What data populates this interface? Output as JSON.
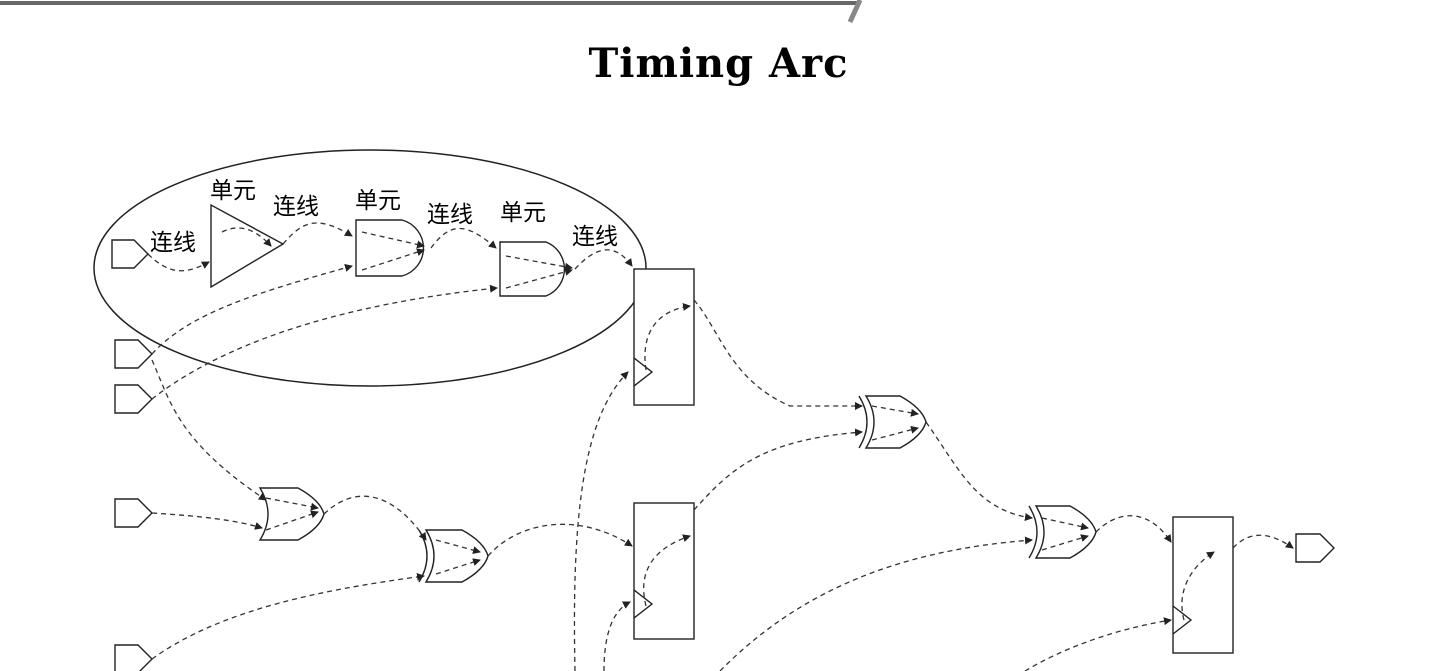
{
  "title": "Timing Arc",
  "labels": {
    "wire": "连线",
    "cell": "单元"
  }
}
